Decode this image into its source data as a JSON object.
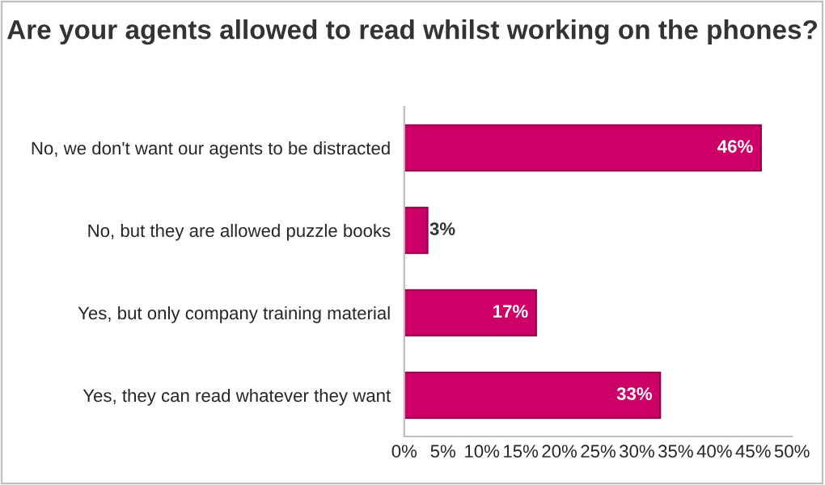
{
  "chart_data": {
    "type": "bar",
    "orientation": "horizontal",
    "title": "Are your agents allowed to read whilst working on the phones?",
    "categories": [
      "No, we don't want our agents to be distracted",
      "No, but they are allowed puzzle books",
      "Yes, but only company training material",
      "Yes, they can read whatever they want"
    ],
    "values": [
      46,
      3,
      17,
      33
    ],
    "value_labels": [
      "46%",
      "3%",
      "17%",
      "33%"
    ],
    "color": "#cc0066",
    "xlim": [
      0,
      50
    ],
    "xticks": [
      {
        "value": 0,
        "label": "0%"
      },
      {
        "value": 5,
        "label": "5%"
      },
      {
        "value": 10,
        "label": "10%"
      },
      {
        "value": 15,
        "label": "15%"
      },
      {
        "value": 20,
        "label": "20%"
      },
      {
        "value": 25,
        "label": "25%"
      },
      {
        "value": 30,
        "label": "30%"
      },
      {
        "value": 35,
        "label": "35%"
      },
      {
        "value": 40,
        "label": "40%"
      },
      {
        "value": 45,
        "label": "45%"
      },
      {
        "value": 50,
        "label": "50%"
      }
    ],
    "grid": false,
    "legend": false
  }
}
